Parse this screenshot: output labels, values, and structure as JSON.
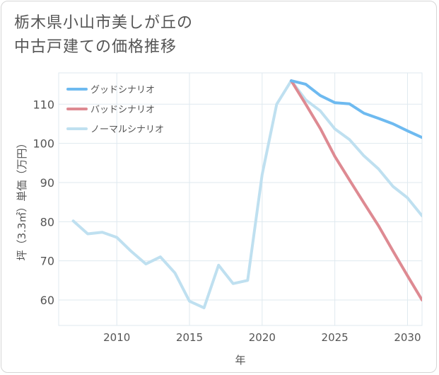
{
  "title_line1": "栃木県小山市美しが丘の",
  "title_line2": "中古戸建ての価格推移",
  "chart_data": {
    "type": "line",
    "xlabel": "年",
    "ylabel": "坪（3.3㎡）単価（万円）",
    "xlim": [
      2006,
      2031
    ],
    "ylim": [
      53.5,
      118
    ],
    "x_ticks": [
      2010,
      2015,
      2020,
      2025,
      2030
    ],
    "y_ticks": [
      60,
      70,
      80,
      90,
      100,
      110
    ],
    "grid": true,
    "legend_position": "top-left",
    "colors": {
      "good": "#6ebaf0",
      "bad": "#de8a92",
      "normal": "#bfe0f0",
      "axis_text": "#555555",
      "grid": "#dfe9ef"
    },
    "series": [
      {
        "key": "normal",
        "name": "ノーマルシナリオ",
        "x": [
          2007,
          2008,
          2009,
          2010,
          2011,
          2012,
          2013,
          2014,
          2015,
          2016,
          2017,
          2018,
          2019,
          2020,
          2021,
          2022,
          2023,
          2024,
          2025,
          2026,
          2027,
          2028,
          2029,
          2030,
          2031
        ],
        "y": [
          80.2,
          76.9,
          77.3,
          76.0,
          72.4,
          69.2,
          71.0,
          66.9,
          59.7,
          58.0,
          68.9,
          64.2,
          65.0,
          92.0,
          110.0,
          116.0,
          111.1,
          108.3,
          103.7,
          101.0,
          96.8,
          93.5,
          89.0,
          86.1,
          81.5
        ]
      },
      {
        "key": "bad",
        "name": "バッドシナリオ",
        "x": [
          2022,
          2023,
          2024,
          2025,
          2026,
          2027,
          2028,
          2029,
          2030,
          2031
        ],
        "y": [
          116.0,
          110.0,
          103.8,
          96.7,
          90.7,
          84.8,
          79.0,
          72.5,
          66.2,
          60.0
        ]
      },
      {
        "key": "good",
        "name": "グッドシナリオ",
        "x": [
          2022,
          2023,
          2024,
          2025,
          2026,
          2027,
          2028,
          2029,
          2030,
          2031
        ],
        "y": [
          116.0,
          115.1,
          112.2,
          110.4,
          110.1,
          107.7,
          106.4,
          105.0,
          103.2,
          101.5
        ]
      }
    ],
    "legend_order": [
      "good",
      "bad",
      "normal"
    ]
  }
}
